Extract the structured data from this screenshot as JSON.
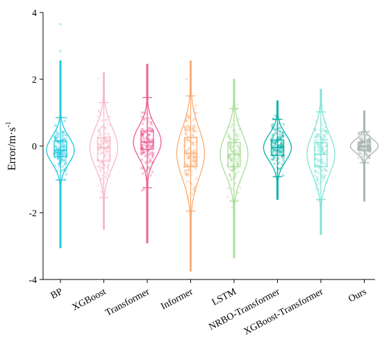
{
  "chart_data": {
    "type": "violin",
    "ylabel": "Error/m·s",
    "ylabel_superscript": "-1",
    "ylim": [
      -4,
      4
    ],
    "yticks": [
      -4,
      -2,
      0,
      2,
      4
    ],
    "grid": false,
    "legend": "none",
    "categories": [
      "BP",
      "XGBoost",
      "Transformer",
      "Informer",
      "LSTM",
      "NRBO-Transformer",
      "XGBoost-Transformer",
      "Ours"
    ],
    "series": [
      {
        "color": "#1fc7dc",
        "min": -3.05,
        "max": 2.55,
        "q1": -0.32,
        "median": -0.12,
        "q3": 0.15,
        "whisker_low": -1.02,
        "whisker_high": 0.85,
        "outliers": [
          3.65,
          2.85
        ]
      },
      {
        "color": "#f7b8c9",
        "min": -2.5,
        "max": 2.2,
        "q1": -0.45,
        "median": -0.05,
        "q3": 0.25,
        "whisker_low": -1.55,
        "whisker_high": 1.3,
        "outliers": []
      },
      {
        "color": "#ef5d94",
        "min": -2.9,
        "max": 2.45,
        "q1": -0.1,
        "median": 0.12,
        "q3": 0.45,
        "whisker_low": -1.25,
        "whisker_high": 1.45,
        "outliers": []
      },
      {
        "color": "#f9ac73",
        "min": -3.75,
        "max": 2.55,
        "q1": -0.62,
        "median": -0.22,
        "q3": 0.25,
        "whisker_low": -1.95,
        "whisker_high": 1.5,
        "outliers": []
      },
      {
        "color": "#a9dc97",
        "min": -3.35,
        "max": 2.0,
        "q1": -0.62,
        "median": -0.25,
        "q3": 0.1,
        "whisker_low": -1.65,
        "whisker_high": 1.12,
        "outliers": []
      },
      {
        "color": "#00b2a9",
        "min": -1.6,
        "max": 1.35,
        "q1": -0.28,
        "median": -0.05,
        "q3": 0.18,
        "whisker_low": -0.92,
        "whisker_high": 0.8,
        "outliers": []
      },
      {
        "color": "#7fe3d5",
        "min": -2.65,
        "max": 1.7,
        "q1": -0.62,
        "median": -0.25,
        "q3": 0.1,
        "whisker_low": -1.6,
        "whisker_high": 1.02,
        "outliers": []
      },
      {
        "color": "#a7b3b0",
        "min": -1.65,
        "max": 1.05,
        "q1": -0.12,
        "median": 0.0,
        "q3": 0.12,
        "whisker_low": -0.5,
        "whisker_high": 0.42,
        "outliers": []
      }
    ]
  }
}
